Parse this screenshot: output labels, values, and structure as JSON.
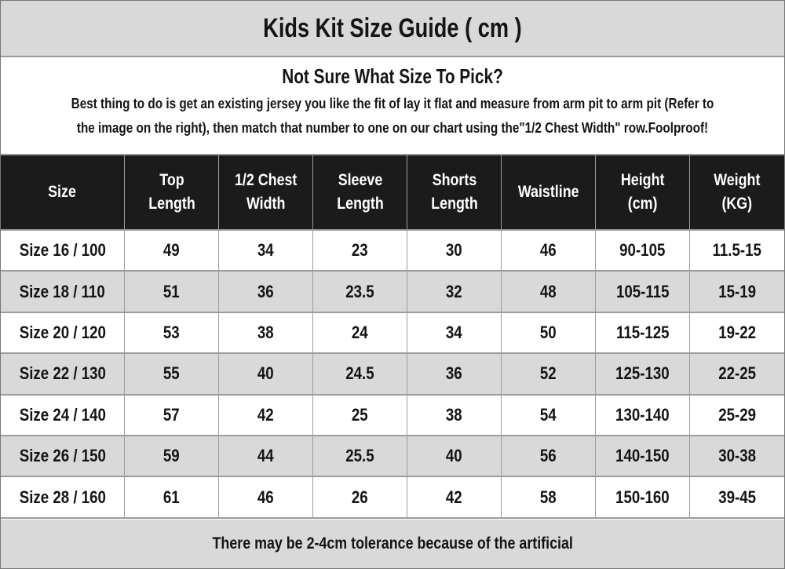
{
  "title": "Kids Kit Size Guide ( cm )",
  "intro": {
    "heading": "Not Sure What Size To Pick?",
    "body": "Best thing to do is get an existing jersey you like the fit of lay it flat and measure from arm pit to arm pit (Refer to\nthe image on the right), then match that number to one on our chart using the\"1/2 Chest Width\" row.Foolproof!"
  },
  "table": {
    "columns": [
      "Size",
      "Top\nLength",
      "1/2 Chest\nWidth",
      "Sleeve\nLength",
      "Shorts\nLength",
      "Waistline",
      "Height\n(cm)",
      "Weight\n(KG)"
    ],
    "rows": [
      [
        "Size 16 / 100",
        "49",
        "34",
        "23",
        "30",
        "46",
        "90-105",
        "11.5-15"
      ],
      [
        "Size 18 / 110",
        "51",
        "36",
        "23.5",
        "32",
        "48",
        "105-115",
        "15-19"
      ],
      [
        "Size 20 / 120",
        "53",
        "38",
        "24",
        "34",
        "50",
        "115-125",
        "19-22"
      ],
      [
        "Size 22 / 130",
        "55",
        "40",
        "24.5",
        "36",
        "52",
        "125-130",
        "22-25"
      ],
      [
        "Size 24 / 140",
        "57",
        "42",
        "25",
        "38",
        "54",
        "130-140",
        "25-29"
      ],
      [
        "Size 26 / 150",
        "59",
        "44",
        "25.5",
        "40",
        "56",
        "140-150",
        "30-38"
      ],
      [
        "Size 28 / 160",
        "61",
        "46",
        "26",
        "42",
        "58",
        "150-160",
        "39-45"
      ]
    ]
  },
  "footer": "There may be 2-4cm tolerance because of the artificial",
  "colors": {
    "band_bg": "#d9d9d9",
    "header_bg": "#1b1b1b",
    "row_alt_bg": "#d9d9d9",
    "border": "#9c9c9c",
    "text": "#141414",
    "header_text": "#ffffff"
  }
}
